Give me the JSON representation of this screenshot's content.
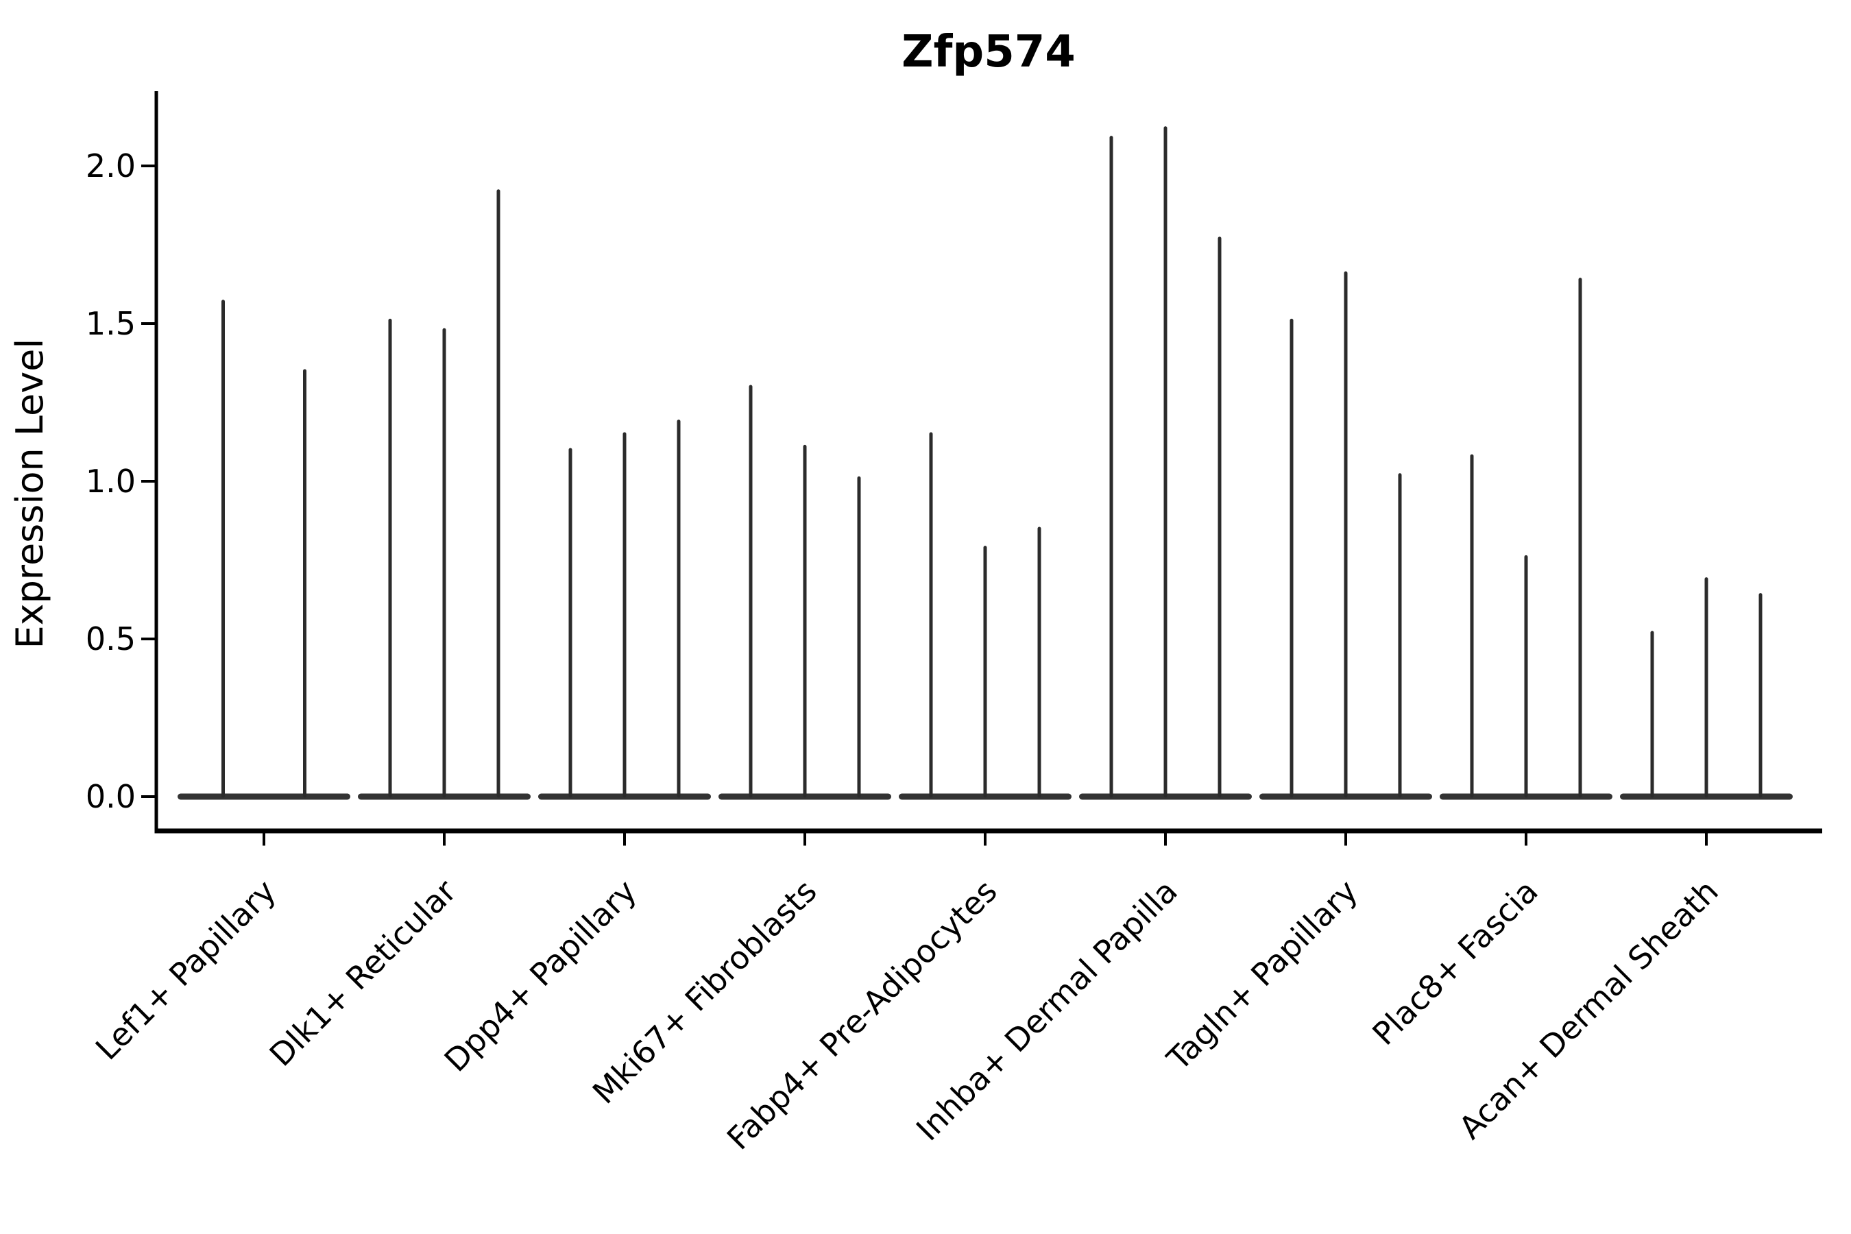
{
  "figure": {
    "background": "#ffffff",
    "ink_color": "#000000",
    "spike_color": "#2b2b2b",
    "base_color": "#333333"
  },
  "chart_data": {
    "type": "violin",
    "title": "Zfp574",
    "xlabel": "",
    "ylabel": "Expression Level",
    "ylim": [
      -0.11,
      2.26
    ],
    "yticks": [
      "0.0",
      "0.5",
      "1.0",
      "1.5",
      "2.0"
    ],
    "ytick_values": [
      0.0,
      0.5,
      1.0,
      1.5,
      2.0
    ],
    "grid": false,
    "legend": "none",
    "description": "Violin plot of single-gene expression per fibroblast subtype; each category holds 2-3 needle-thin violins collapsed to a flat bar at 0 with a thin spike up to the maximum expressing cell.",
    "categories": [
      "Lef1+ Papillary",
      "Dlk1+ Reticular",
      "Dpp4+ Papillary",
      "Mki67+ Fibroblasts",
      "Fabp4+ Pre-Adipocytes",
      "Inhba+ Dermal Papilla",
      "Tagln+ Papillary",
      "Plac8+ Fascia",
      "Acan+ Dermal Sheath"
    ],
    "groups": [
      {
        "label": "Lef1+ Papillary",
        "spikes": [
          1.57,
          1.35
        ]
      },
      {
        "label": "Dlk1+ Reticular",
        "spikes": [
          1.51,
          1.48,
          1.92
        ]
      },
      {
        "label": "Dpp4+ Papillary",
        "spikes": [
          1.1,
          1.15,
          1.19
        ]
      },
      {
        "label": "Mki67+ Fibroblasts",
        "spikes": [
          1.3,
          1.11,
          1.01
        ]
      },
      {
        "label": "Fabp4+ Pre-Adipocytes",
        "spikes": [
          1.15,
          0.79,
          0.85
        ]
      },
      {
        "label": "Inhba+ Dermal Papilla",
        "spikes": [
          2.09,
          2.12,
          1.77
        ]
      },
      {
        "label": "Tagln+ Papillary",
        "spikes": [
          1.51,
          1.66,
          1.02
        ]
      },
      {
        "label": "Plac8+ Fascia",
        "spikes": [
          1.08,
          0.76,
          1.64
        ]
      },
      {
        "label": "Acan+ Dermal Sheath",
        "spikes": [
          0.52,
          0.69,
          0.64
        ]
      }
    ]
  }
}
